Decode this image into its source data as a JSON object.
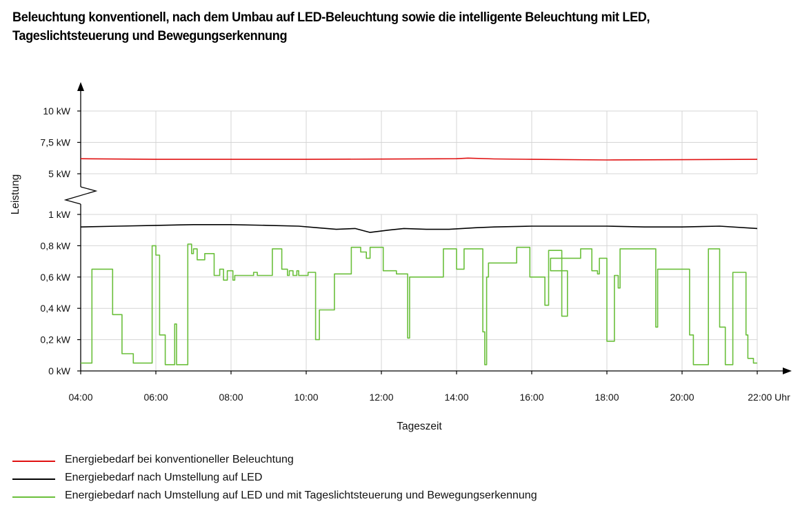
{
  "title": {
    "line1": "Beleuchtung konventionell, nach dem Umbau auf LED-Beleuchtung sowie die intelligente Beleuchtung mit LED,",
    "line2": "Tageslichtsteuerung und Bewegungserkennung"
  },
  "chart_data": {
    "type": "line",
    "ylabel": "Leistung",
    "xlabel": "Tageszeit",
    "x_unit_suffix": "Uhr",
    "x_ticks": [
      "04:00",
      "06:00",
      "08:00",
      "10:00",
      "12:00",
      "14:00",
      "16:00",
      "18:00",
      "20:00",
      "22:00"
    ],
    "xlim_hours": [
      4,
      22
    ],
    "y_axis_break": true,
    "upper_panel": {
      "ylim": [
        5,
        10
      ],
      "ticks": [
        5,
        7.5,
        10
      ],
      "tick_labels": [
        "5 kW",
        "7,5 kW",
        "10 kW"
      ]
    },
    "lower_panel": {
      "ylim": [
        0,
        1
      ],
      "ticks": [
        0,
        0.2,
        0.4,
        0.6,
        0.8,
        1
      ],
      "tick_labels": [
        "0 kW",
        "0,2 kW",
        "0,4 kW",
        "0,6 kW",
        "0,8 kW",
        "1 kW"
      ]
    },
    "grid": true,
    "legend_position": "bottom",
    "series": [
      {
        "name": "Energiebedarf bei konventioneller Beleuchtung",
        "color": "#e01010",
        "x": [
          4.0,
          6.0,
          8.0,
          10.0,
          12.0,
          14.0,
          14.3,
          15.0,
          16.0,
          18.0,
          20.0,
          22.0
        ],
        "y": [
          6.2,
          6.15,
          6.15,
          6.15,
          6.17,
          6.2,
          6.25,
          6.18,
          6.15,
          6.1,
          6.12,
          6.15
        ]
      },
      {
        "name": "Energiebedarf nach Umstellung auf LED",
        "color": "#000000",
        "x": [
          4.0,
          5.0,
          6.0,
          7.0,
          8.0,
          9.0,
          9.8,
          10.3,
          10.8,
          11.3,
          11.7,
          12.2,
          12.6,
          13.2,
          13.8,
          14.5,
          15.0,
          16.0,
          17.0,
          18.0,
          19.0,
          20.0,
          21.0,
          22.0
        ],
        "y": [
          0.92,
          0.925,
          0.93,
          0.935,
          0.935,
          0.93,
          0.925,
          0.915,
          0.905,
          0.91,
          0.885,
          0.9,
          0.91,
          0.905,
          0.905,
          0.915,
          0.92,
          0.925,
          0.925,
          0.925,
          0.92,
          0.92,
          0.925,
          0.91
        ]
      },
      {
        "name": "Energiebedarf nach Umstellung auf LED und mit Tageslichtsteuerung und Bewegungserkennung",
        "color": "#6abf3a",
        "step": true,
        "x": [
          4.0,
          4.3,
          4.85,
          5.1,
          5.4,
          5.9,
          6.0,
          6.1,
          6.25,
          6.5,
          6.55,
          6.85,
          6.95,
          7.0,
          7.1,
          7.3,
          7.55,
          7.7,
          7.8,
          7.9,
          8.05,
          8.1,
          8.55,
          8.6,
          8.7,
          8.9,
          9.1,
          9.35,
          9.5,
          9.55,
          9.65,
          9.75,
          9.8,
          10.05,
          10.1,
          10.2,
          10.25,
          10.35,
          10.75,
          11.2,
          11.3,
          11.45,
          11.6,
          11.7,
          11.8,
          12.05,
          12.4,
          12.7,
          12.75,
          12.85,
          13.65,
          14.0,
          14.2,
          14.3,
          14.7,
          14.75,
          14.8,
          14.85,
          15.6,
          15.75,
          15.8,
          15.95,
          16.35,
          16.45,
          16.55,
          16.8,
          16.95,
          16.5,
          17.05,
          17.3,
          17.45,
          17.6,
          17.75,
          17.8,
          18.0,
          18.2,
          18.3,
          18.35,
          19.25,
          19.3,
          19.35,
          20.0,
          20.2,
          20.3,
          20.7,
          21.0,
          21.15,
          21.35,
          21.7,
          21.75,
          21.9,
          22.0
        ],
        "y": [
          0.05,
          0.65,
          0.36,
          0.11,
          0.05,
          0.8,
          0.74,
          0.23,
          0.04,
          0.3,
          0.04,
          0.81,
          0.75,
          0.78,
          0.71,
          0.75,
          0.61,
          0.65,
          0.58,
          0.64,
          0.58,
          0.61,
          0.61,
          0.63,
          0.61,
          0.61,
          0.78,
          0.65,
          0.61,
          0.64,
          0.61,
          0.64,
          0.61,
          0.63,
          0.63,
          0.63,
          0.2,
          0.39,
          0.62,
          0.79,
          0.79,
          0.76,
          0.72,
          0.79,
          0.79,
          0.64,
          0.62,
          0.21,
          0.6,
          0.6,
          0.78,
          0.65,
          0.78,
          0.78,
          0.25,
          0.04,
          0.6,
          0.69,
          0.79,
          0.79,
          0.79,
          0.6,
          0.42,
          0.77,
          0.77,
          0.35,
          0.64,
          0.72,
          0.72,
          0.78,
          0.78,
          0.64,
          0.62,
          0.72,
          0.19,
          0.61,
          0.53,
          0.78,
          0.78,
          0.28,
          0.65,
          0.65,
          0.23,
          0.04,
          0.78,
          0.28,
          0.04,
          0.63,
          0.23,
          0.08,
          0.05,
          0.05
        ]
      }
    ]
  }
}
